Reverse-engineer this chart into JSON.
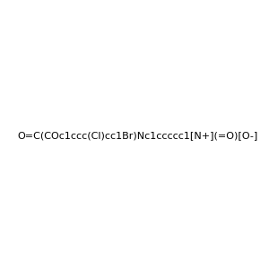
{
  "smiles": "O=C(COc1ccc(Cl)cc1Br)Nc1ccccc1[N+](=O)[O-]",
  "image_size": 300,
  "background_color": "#e8e8e8",
  "atom_colors": {
    "Br": "#d4820a",
    "Cl": "#4ab84a",
    "N": "#2020dd",
    "O": "#dd2020",
    "C": "#1a6b6b",
    "H": "#808080"
  },
  "title": ""
}
